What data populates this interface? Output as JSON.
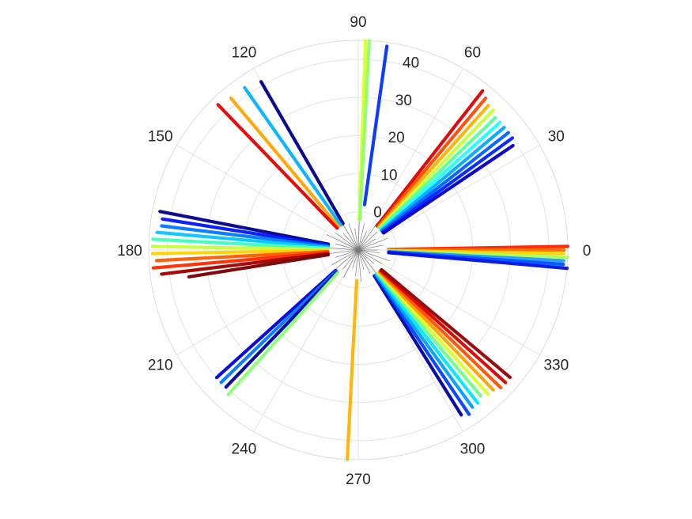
{
  "chart_data": {
    "type": "scatter",
    "coordinate_system": "polar",
    "title": "",
    "r_range": [
      -10,
      45
    ],
    "r_ticks": [
      "0",
      "10",
      "20",
      "30",
      "40"
    ],
    "r_tick_values": [
      0,
      10,
      20,
      30,
      40
    ],
    "theta_unit": "degrees",
    "theta_ticks": [
      "0",
      "30",
      "60",
      "90",
      "120",
      "150",
      "180",
      "210",
      "240",
      "270",
      "300",
      "330"
    ],
    "theta_tick_values": [
      0,
      30,
      60,
      90,
      120,
      150,
      180,
      210,
      240,
      270,
      300,
      330
    ],
    "grid": true,
    "colormap": "jet",
    "series": [
      {
        "theta": 1,
        "r_start": -2,
        "r_end": 45,
        "color": "#ff2000"
      },
      {
        "theta": 0,
        "r_start": -2,
        "r_end": 44,
        "color": "#ff6a00"
      },
      {
        "theta": -1,
        "r_start": -2,
        "r_end": 44,
        "color": "#ffd200"
      },
      {
        "theta": -2,
        "r_start": -2,
        "r_end": 45,
        "color": "#aaff55"
      },
      {
        "theta": -3,
        "r_start": -2,
        "r_end": 44,
        "color": "#1e9bff"
      },
      {
        "theta": -4,
        "r_start": -2,
        "r_end": 44,
        "color": "#0050ff"
      },
      {
        "theta": -5,
        "r_start": -2,
        "r_end": 45,
        "color": "#0010e6"
      },
      {
        "theta": 52,
        "r_start": -2,
        "r_end": 43,
        "color": "#dd0000"
      },
      {
        "theta": 50,
        "r_start": -2,
        "r_end": 42,
        "color": "#ff4a00"
      },
      {
        "theta": 48,
        "r_start": -2,
        "r_end": 41,
        "color": "#ffb000"
      },
      {
        "theta": 46,
        "r_start": -2,
        "r_end": 41,
        "color": "#c8ff37"
      },
      {
        "theta": 44,
        "r_start": -2,
        "r_end": 40,
        "color": "#5aff9d"
      },
      {
        "theta": 42,
        "r_start": -2,
        "r_end": 40,
        "color": "#1effff"
      },
      {
        "theta": 40,
        "r_start": -2,
        "r_end": 40,
        "color": "#00aaff"
      },
      {
        "theta": 38,
        "r_start": -2,
        "r_end": 40,
        "color": "#0060ff"
      },
      {
        "theta": 36,
        "r_start": -2,
        "r_end": 40,
        "color": "#0020ff"
      },
      {
        "theta": 34,
        "r_start": -2,
        "r_end": 39,
        "color": "#0000c8"
      },
      {
        "theta": 88,
        "r_start": -2,
        "r_end": 45,
        "color": "#e1ff1e"
      },
      {
        "theta": 87,
        "r_start": -2,
        "r_end": 45,
        "color": "#8dff71"
      },
      {
        "theta": 82,
        "r_start": 2,
        "r_end": 44,
        "color": "#0032ff"
      },
      {
        "theta": 120,
        "r_start": -2,
        "r_end": 41,
        "color": "#00008c"
      },
      {
        "theta": 125,
        "r_start": -2,
        "r_end": 42,
        "color": "#00b4ff"
      },
      {
        "theta": 130,
        "r_start": -2,
        "r_end": 42,
        "color": "#ffa500"
      },
      {
        "theta": 134,
        "r_start": -2,
        "r_end": 43,
        "color": "#e60000"
      },
      {
        "theta": 169,
        "r_start": -2,
        "r_end": 43,
        "color": "#00008c"
      },
      {
        "theta": 171,
        "r_start": -2,
        "r_end": 42,
        "color": "#0014ff"
      },
      {
        "theta": 173,
        "r_start": -2,
        "r_end": 42,
        "color": "#0078ff"
      },
      {
        "theta": 175,
        "r_start": -2,
        "r_end": 43,
        "color": "#00c8ff"
      },
      {
        "theta": 177,
        "r_start": -2,
        "r_end": 44,
        "color": "#3cffbe"
      },
      {
        "theta": 179,
        "r_start": -2,
        "r_end": 44,
        "color": "#c8ff37"
      },
      {
        "theta": 181,
        "r_start": -2,
        "r_end": 44,
        "color": "#ffd200"
      },
      {
        "theta": 183,
        "r_start": -2,
        "r_end": 43,
        "color": "#ff5a00"
      },
      {
        "theta": 185,
        "r_start": -2,
        "r_end": 44,
        "color": "#ff2800"
      },
      {
        "theta": 187,
        "r_start": -2,
        "r_end": 42,
        "color": "#a00000"
      },
      {
        "theta": 189,
        "r_start": -2,
        "r_end": 35,
        "color": "#780000"
      },
      {
        "theta": 222,
        "r_start": -2,
        "r_end": 40,
        "color": "#0000dc"
      },
      {
        "theta": 224,
        "r_start": -2,
        "r_end": 40,
        "color": "#0078ff"
      },
      {
        "theta": 226,
        "r_start": -2,
        "r_end": 40,
        "color": "#0000a0"
      },
      {
        "theta": 228,
        "r_start": -2,
        "r_end": 41,
        "color": "#8cff73"
      },
      {
        "theta": 267,
        "r_start": -2,
        "r_end": 45,
        "color": "#ffb400"
      },
      {
        "theta": 302,
        "r_start": -2,
        "r_end": 41,
        "color": "#0000a0"
      },
      {
        "theta": 304,
        "r_start": -2,
        "r_end": 42,
        "color": "#0040ff"
      },
      {
        "theta": 306,
        "r_start": -2,
        "r_end": 41,
        "color": "#00a0ff"
      },
      {
        "theta": 308,
        "r_start": -2,
        "r_end": 41,
        "color": "#00e6ff"
      },
      {
        "theta": 310,
        "r_start": -2,
        "r_end": 40,
        "color": "#6eff8c"
      },
      {
        "theta": 312,
        "r_start": -2,
        "r_end": 41,
        "color": "#dcff23"
      },
      {
        "theta": 314,
        "r_start": -2,
        "r_end": 41,
        "color": "#ffa000"
      },
      {
        "theta": 316,
        "r_start": -2,
        "r_end": 42,
        "color": "#ff5000"
      },
      {
        "theta": 318,
        "r_start": -2,
        "r_end": 42,
        "color": "#dc0000"
      },
      {
        "theta": 320,
        "r_start": -2,
        "r_end": 42,
        "color": "#960000"
      }
    ]
  }
}
